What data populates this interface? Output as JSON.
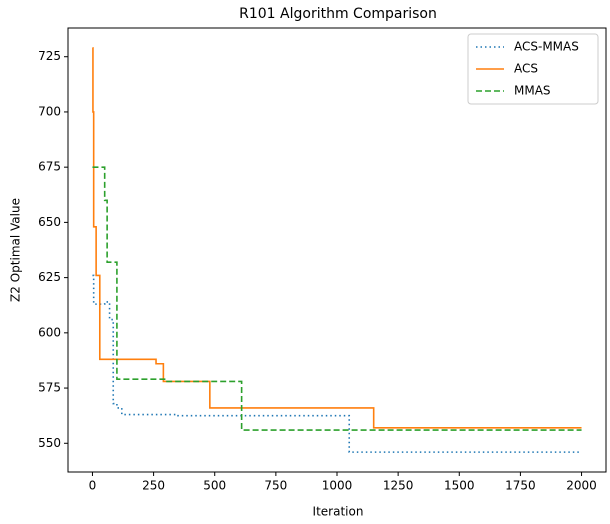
{
  "chart_data": {
    "type": "line",
    "step": "post",
    "title": "R101 Algorithm Comparison",
    "xlabel": "Iteration",
    "ylabel": "Z2 Optimal Value",
    "xlim": [
      -100,
      2100
    ],
    "ylim": [
      537,
      738
    ],
    "xticks": [
      0,
      250,
      500,
      750,
      1000,
      1250,
      1500,
      1750,
      2000
    ],
    "yticks": [
      550,
      575,
      600,
      625,
      650,
      675,
      700,
      725
    ],
    "legend": "upper right",
    "series": [
      {
        "name": "ACS-MMAS",
        "color": "#1f77b4",
        "dash": "dotted",
        "x": [
          0,
          5,
          50,
          70,
          85,
          100,
          120,
          350,
          1050,
          2000
        ],
        "values": [
          626,
          613,
          614,
          606,
          568,
          566,
          563,
          562.5,
          546,
          546
        ]
      },
      {
        "name": "ACS",
        "color": "#ff7f0e",
        "dash": "solid",
        "x": [
          0,
          2,
          5,
          15,
          30,
          260,
          290,
          480,
          1150,
          2000
        ],
        "values": [
          729,
          700,
          648,
          626,
          588,
          586,
          578,
          566,
          557,
          557
        ]
      },
      {
        "name": "MMAS",
        "color": "#2ca02c",
        "dash": "dashed",
        "x": [
          0,
          50,
          60,
          100,
          300,
          610,
          2000
        ],
        "values": [
          675,
          660,
          632,
          579,
          578,
          556,
          556
        ]
      }
    ]
  }
}
